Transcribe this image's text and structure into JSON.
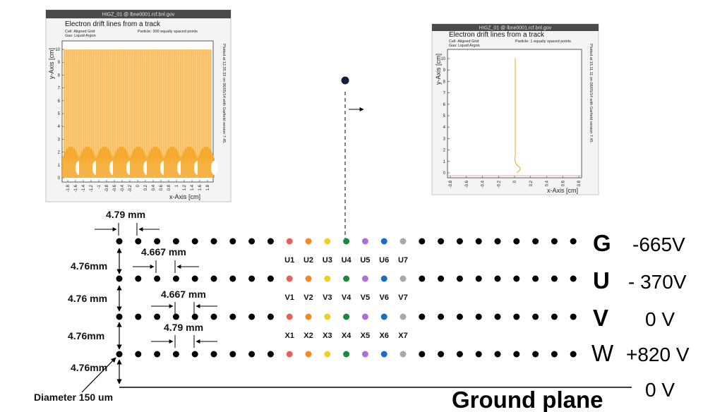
{
  "plots": [
    {
      "window_title": "HIGZ_01 @ lbne0001.rcf.bnl.gov",
      "title": "Electron drift lines from a track",
      "cell": "Cell: Aligned Grid",
      "gas": "Gas: Liquid Argon",
      "particles": "Particle: 300 equally spaced points",
      "side_note": "Plotted at 12.35.33 on 06/05/14 with Garfield version 7.45.",
      "xlabel": "x-Axis [cm]",
      "ylabel": "y-Axis [cm]",
      "xticks": [
        "-1.8",
        "-1.6",
        "-1.4",
        "-1.2",
        "-1",
        "-0.8",
        "-0.6",
        "-0.4",
        "-0.2",
        "0",
        "0.2",
        "0.4",
        "0.6",
        "0.8",
        "1",
        "1.2",
        "1.4",
        "1.6",
        "1.8"
      ],
      "yticks": [
        "0",
        "1",
        "2",
        "3",
        "4",
        "5",
        "6",
        "7",
        "8",
        "9",
        "10"
      ],
      "line_color": "#f5a623"
    },
    {
      "window_title": "HIGZ_01 @ lbne0001.rcf.bnl.gov",
      "title": "Electron drift lines from a track",
      "cell": "Cell: Aligned Grid",
      "gas": "Gas: Liquid Argon",
      "particles": "Particle: 1 equally spaced points",
      "side_note": "Plotted at 15.11.11 on 06/05/14 with Garfield version 7.45.",
      "xlabel": "x-Axis [cm]",
      "ylabel": "y-Axis [cm]",
      "xticks": [
        "-0.8",
        "-0.6",
        "-0.4",
        "-0.2",
        "0",
        "0.2",
        "0.4",
        "0.6",
        "0.8"
      ],
      "yticks": [
        "0",
        "1",
        "2",
        "3",
        "4",
        "5",
        "6",
        "7",
        "8",
        "9",
        "10"
      ],
      "line_color": "#f5a623"
    }
  ],
  "dimensions": {
    "g_pitch": "4.79 mm",
    "u_pitch": "4.667 mm",
    "v_pitch": "4.667 mm",
    "w_pitch": "4.79 mm",
    "gap_gu": "4.76mm",
    "gap_uv": "4.76 mm",
    "gap_vw": "4.76mm",
    "gap_wground": "4.76mm",
    "diameter": "Diameter 150 um"
  },
  "wire_labels": {
    "u": [
      "U1",
      "U2",
      "U3",
      "U4",
      "U5",
      "U6",
      "U7"
    ],
    "v": [
      "V1",
      "V2",
      "V3",
      "V4",
      "V5",
      "V6",
      "V7"
    ],
    "x": [
      "X1",
      "X2",
      "X3",
      "X4",
      "X5",
      "X6",
      "X7"
    ]
  },
  "wire_colors": [
    "#e8605a",
    "#f58a20",
    "#f2cf1d",
    "#1a8a3a",
    "#b06ed8",
    "#1a6ec2",
    "#a8a8a8"
  ],
  "planes": [
    {
      "name": "G",
      "voltage": "-665V"
    },
    {
      "name": "U",
      "voltage": "- 370V"
    },
    {
      "name": "V",
      "voltage": "0 V"
    },
    {
      "name": "W",
      "voltage": "+820 V"
    }
  ],
  "ground": {
    "label": "Ground plane",
    "voltage": "0 V"
  }
}
